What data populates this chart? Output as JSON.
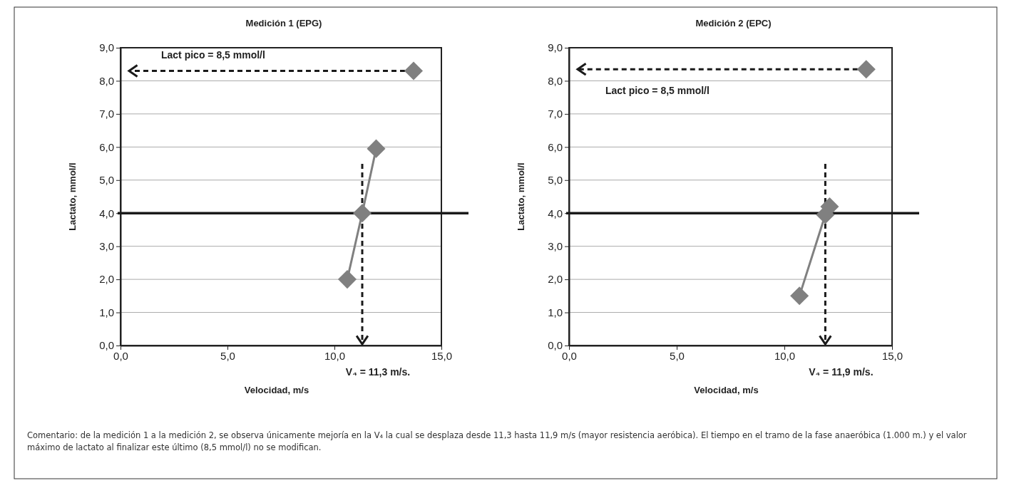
{
  "chart_data": [
    {
      "type": "line",
      "title": "Medición 1 (EPG)",
      "xlabel": "Velocidad, m/s",
      "ylabel": "Lactato, mmol/l",
      "x": [
        10.6,
        11.3,
        11.95
      ],
      "series": [
        {
          "type": "line",
          "color": "#808080",
          "values": [
            2.0,
            4.0,
            5.95
          ]
        },
        {
          "type": "scatter",
          "color": "#808080",
          "x": [
            13.7
          ],
          "values": [
            8.3
          ]
        }
      ],
      "xlim": [
        0,
        15
      ],
      "xticks": [
        {
          "value": 0,
          "label": "0,0"
        },
        {
          "value": 5,
          "label": "5,0"
        },
        {
          "value": 10,
          "label": "10,0"
        },
        {
          "value": 15,
          "label": "15,0"
        }
      ],
      "ylim": [
        0,
        9
      ],
      "yticks": [
        {
          "value": 0,
          "label": "0,0"
        },
        {
          "value": 1,
          "label": "1,0"
        },
        {
          "value": 2,
          "label": "2,0"
        },
        {
          "value": 3,
          "label": "3,0"
        },
        {
          "value": 4,
          "label": "4,0"
        },
        {
          "value": 5,
          "label": "5,0"
        },
        {
          "value": 6,
          "label": "6,0"
        },
        {
          "value": 7,
          "label": "7,0"
        },
        {
          "value": 8,
          "label": "8,0"
        },
        {
          "value": 9,
          "label": "9,0"
        }
      ],
      "ref_lines": [
        {
          "axis": "y",
          "value": 4,
          "color": "#1a1a1a"
        },
        {
          "axis": "y",
          "value": 8.3,
          "color": "#1a1a1a",
          "line_style": "dashed"
        },
        {
          "axis": "x",
          "value": 11.3,
          "color": "#1a1a1a",
          "line_style": "dashed"
        }
      ],
      "grid": "y",
      "marker": "diamond",
      "annotations": [
        "Lact pico = 8,5 mmol/l",
        "V₄ = 11,3 m/s.",
        "Comentario:  de la medición 1 a la medición 2, se observa únicamente mejoría en la V₄ la cual se desplaza desde 11,3 hasta 11,9 m/s (mayor resistencia aeróbica). El tiempo en el tramo de la fase anaeróbica (1.000 m.) y el valor máximo de lactato al finalizar este último (8,5 mmol/l) no se modifican."
      ]
    },
    {
      "type": "line",
      "title": "Medición 2 (EPC)",
      "xlabel": "Velocidad, m/s",
      "ylabel": "Lactato, mmol/l",
      "x": [
        10.7,
        11.9,
        12.1
      ],
      "series": [
        {
          "type": "line",
          "color": "#808080",
          "values": [
            1.5,
            3.95,
            4.2
          ]
        },
        {
          "type": "scatter",
          "color": "#808080",
          "x": [
            13.8
          ],
          "values": [
            8.35
          ]
        }
      ],
      "xlim": [
        0,
        15
      ],
      "xticks": [
        {
          "value": 0,
          "label": "0,0"
        },
        {
          "value": 5,
          "label": "5,0"
        },
        {
          "value": 10,
          "label": "10,0"
        },
        {
          "value": 15,
          "label": "15,0"
        }
      ],
      "ylim": [
        0,
        9
      ],
      "yticks": [
        {
          "value": 0,
          "label": "0,0"
        },
        {
          "value": 1,
          "label": "1,0"
        },
        {
          "value": 2,
          "label": "2,0"
        },
        {
          "value": 3,
          "label": "3,0"
        },
        {
          "value": 4,
          "label": "4,0"
        },
        {
          "value": 5,
          "label": "5,0"
        },
        {
          "value": 6,
          "label": "6,0"
        },
        {
          "value": 7,
          "label": "7,0"
        },
        {
          "value": 8,
          "label": "8,0"
        },
        {
          "value": 9,
          "label": "9,0"
        }
      ],
      "ref_lines": [
        {
          "axis": "y",
          "value": 4,
          "color": "#1a1a1a"
        },
        {
          "axis": "y",
          "value": 8.35,
          "color": "#1a1a1a",
          "line_style": "dashed"
        },
        {
          "axis": "x",
          "value": 11.9,
          "color": "#1a1a1a",
          "line_style": "dashed"
        }
      ],
      "grid": "y",
      "marker": "diamond",
      "annotations": [
        "Lact pico = 8,5 mmol/l",
        "V₄ = 11,9 m/s."
      ]
    }
  ]
}
